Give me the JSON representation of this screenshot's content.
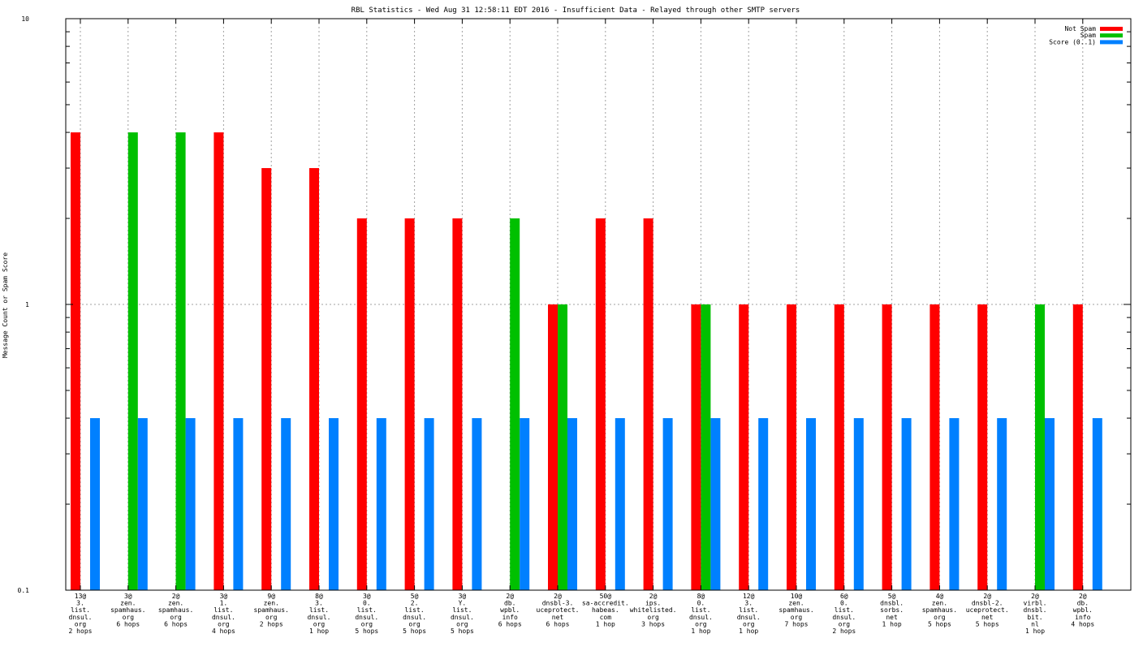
{
  "chart_data": {
    "type": "bar",
    "title": "RBL Statistics - Wed Aug 31 12:58:11 EDT 2016 - Insufficient Data - Relayed through other SMTP servers",
    "xlabel": "",
    "ylabel": "Message Count or Spam Score",
    "yscale": "log",
    "ylim": [
      0.1,
      10
    ],
    "yticks": [
      "0.1",
      "1",
      "10"
    ],
    "grid": true,
    "legend_position": "top-right",
    "categories": [
      [
        "13@",
        "3.",
        "list.",
        "dnsul.",
        "org",
        "2 hops"
      ],
      [
        "3@",
        "zen.",
        "spamhaus.",
        "org",
        "6 hops"
      ],
      [
        "2@",
        "zen.",
        "spamhaus.",
        "org",
        "6 hops"
      ],
      [
        "3@",
        "1.",
        "list.",
        "dnsul.",
        "org",
        "4 hops"
      ],
      [
        "9@",
        "zen.",
        "spamhaus.",
        "org",
        "2 hops"
      ],
      [
        "8@",
        "3.",
        "list.",
        "dnsul.",
        "org",
        "1 hop"
      ],
      [
        "3@",
        "0.",
        "list.",
        "dnsul.",
        "org",
        "5 hops"
      ],
      [
        "5@",
        "2.",
        "list.",
        "dnsul.",
        "org",
        "5 hops"
      ],
      [
        "3@",
        "Y.",
        "list.",
        "dnsul.",
        "org",
        "5 hops"
      ],
      [
        "2@",
        "db.",
        "wpbl.",
        "info",
        "6 hops"
      ],
      [
        "2@",
        "dnsbl-3.",
        "uceprotect.",
        "net",
        "6 hops"
      ],
      [
        "50@",
        "sa-accredit.",
        "habeas.",
        "com",
        "1 hop"
      ],
      [
        "2@",
        "ips.",
        "whitelisted.",
        "org",
        "3 hops"
      ],
      [
        "8@",
        "0.",
        "list.",
        "dnsul.",
        "org",
        "1 hop"
      ],
      [
        "12@",
        "3.",
        "list.",
        "dnsul.",
        "org",
        "1 hop"
      ],
      [
        "10@",
        "zen.",
        "spamhaus.",
        "org",
        "7 hops"
      ],
      [
        "6@",
        "0.",
        "list.",
        "dnsul.",
        "org",
        "2 hops"
      ],
      [
        "5@",
        "dnsbl.",
        "sorbs.",
        "net",
        "1 hop"
      ],
      [
        "4@",
        "zen.",
        "spamhaus.",
        "org",
        "5 hops"
      ],
      [
        "2@",
        "dnsbl-2.",
        "uceprotect.",
        "net",
        "5 hops"
      ],
      [
        "2@",
        "virbl.",
        "dnsbl.",
        "bit.",
        "nl",
        "1 hop"
      ],
      [
        "2@",
        "db.",
        "wpbl.",
        "info",
        "4 hops"
      ]
    ],
    "series": [
      {
        "name": "Not Spam",
        "color": "#ff0000",
        "values": [
          4,
          null,
          null,
          4,
          3,
          3,
          2,
          2,
          2,
          null,
          1,
          2,
          2,
          1,
          1,
          1,
          1,
          1,
          1,
          1,
          null,
          1
        ]
      },
      {
        "name": "Spam",
        "color": "#00c000",
        "values": [
          null,
          4,
          4,
          null,
          null,
          null,
          null,
          null,
          null,
          2,
          1,
          null,
          null,
          1,
          null,
          null,
          null,
          null,
          null,
          null,
          1,
          null
        ]
      },
      {
        "name": "Score (0..1)",
        "color": "#0080ff",
        "values": [
          0.4,
          0.4,
          0.4,
          0.4,
          0.4,
          0.4,
          0.4,
          0.4,
          0.4,
          0.4,
          0.4,
          0.4,
          0.4,
          0.4,
          0.4,
          0.4,
          0.4,
          0.4,
          0.4,
          0.4,
          0.4,
          0.4
        ]
      }
    ]
  }
}
